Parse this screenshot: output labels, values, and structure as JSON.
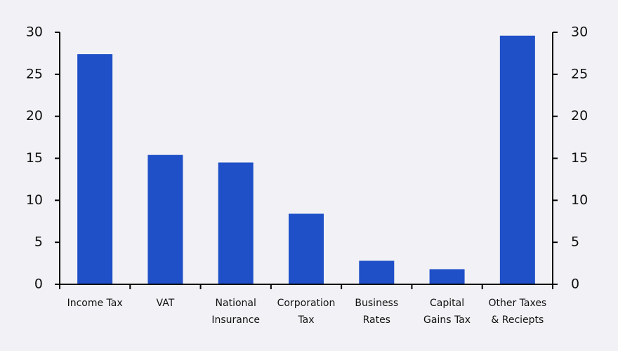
{
  "chart_data": {
    "type": "bar",
    "categories": [
      [
        "Income Tax"
      ],
      [
        "VAT"
      ],
      [
        "National",
        "Insurance"
      ],
      [
        "Corporation",
        "Tax"
      ],
      [
        "Business",
        "Rates"
      ],
      [
        "Capital",
        "Gains Tax"
      ],
      [
        "Other Taxes",
        "& Reciepts"
      ]
    ],
    "values": [
      27.4,
      15.4,
      14.5,
      8.4,
      2.8,
      1.8,
      29.6
    ],
    "color": "#1f50c8",
    "ylim": [
      0,
      30
    ],
    "yticks": [
      0,
      5,
      10,
      15,
      20,
      25,
      30
    ],
    "y2lim": [
      0,
      30
    ],
    "y2ticks": [
      0,
      5,
      10,
      15,
      20,
      25,
      30
    ]
  }
}
